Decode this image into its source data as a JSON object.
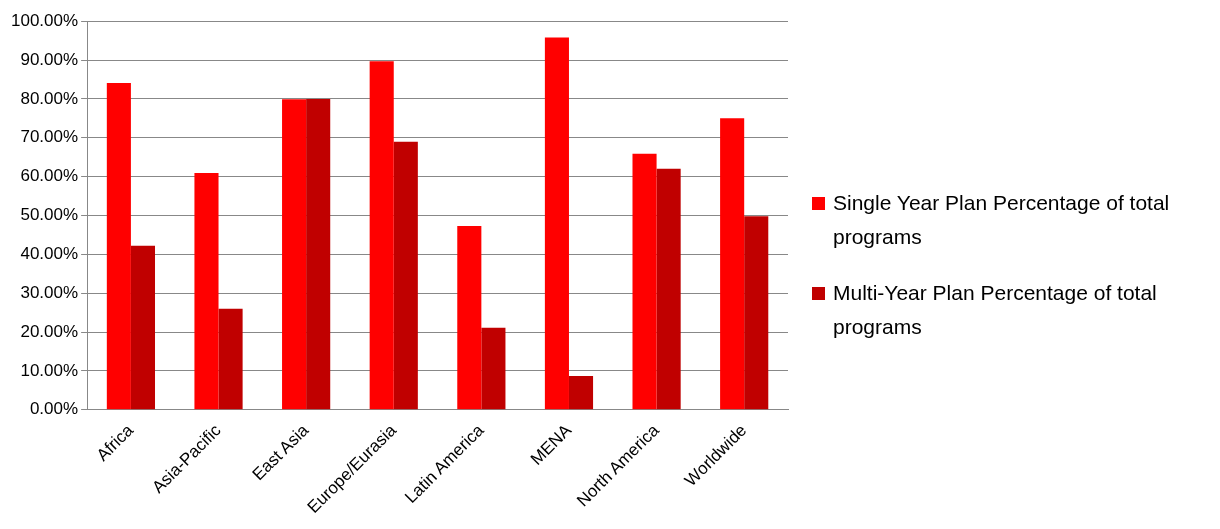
{
  "chart_data": {
    "type": "bar",
    "categories": [
      "Africa",
      "Asia-Pacific",
      "East Asia",
      "Europe/Eurasia",
      "Latin America",
      "MENA",
      "North America",
      "Worldwide"
    ],
    "series": [
      {
        "name": "Single Year Plan Percentage of total programs",
        "color": "#ff0000",
        "values": [
          84.1,
          60.9,
          79.9,
          89.7,
          47.3,
          95.8,
          65.9,
          75.0
        ]
      },
      {
        "name": "Multi-Year Plan Percentage of total programs",
        "color": "#c00000",
        "values": [
          42.2,
          26.0,
          80.0,
          69.0,
          21.1,
          8.7,
          62.0,
          49.8
        ]
      }
    ],
    "ylim": [
      0,
      100
    ],
    "yticks": [
      {
        "value": 0,
        "label": "0.00%"
      },
      {
        "value": 10,
        "label": "10.00%"
      },
      {
        "value": 20,
        "label": "20.00%"
      },
      {
        "value": 30,
        "label": "30.00%"
      },
      {
        "value": 40,
        "label": "40.00%"
      },
      {
        "value": 50,
        "label": "50.00%"
      },
      {
        "value": 60,
        "label": "60.00%"
      },
      {
        "value": 70,
        "label": "70.00%"
      },
      {
        "value": 80,
        "label": "80.00%"
      },
      {
        "value": 90,
        "label": "90.00%"
      },
      {
        "value": 100,
        "label": "100.00%"
      }
    ],
    "grid": "y",
    "legend": "right"
  }
}
